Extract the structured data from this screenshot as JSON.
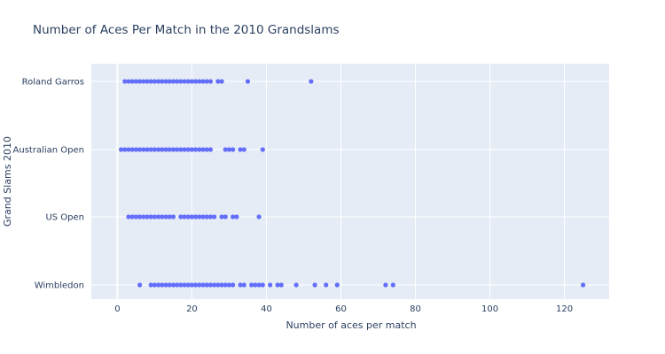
{
  "chart_data": {
    "type": "scatter",
    "title": "Number of Aces Per Match in the 2010 Grandslams",
    "xlabel": "Number of aces per match",
    "ylabel": "Grand Slams 2010",
    "xlim": [
      -7,
      132
    ],
    "xticks": [
      0,
      20,
      40,
      60,
      80,
      100,
      120
    ],
    "xtick_labels": [
      "0",
      "20",
      "40",
      "60",
      "80",
      "100",
      "120"
    ],
    "categories": [
      "Roland Garros",
      "Australian Open",
      "US Open",
      "Wimbledon"
    ],
    "grid": true,
    "marker_color": "#636efa",
    "plot_bgcolor": "#e5ecf6",
    "series": [
      {
        "category": "Roland Garros",
        "values": [
          2,
          3,
          4,
          5,
          6,
          7,
          8,
          9,
          10,
          11,
          12,
          13,
          14,
          15,
          16,
          17,
          18,
          19,
          20,
          21,
          22,
          23,
          24,
          25,
          27,
          28,
          35,
          52
        ]
      },
      {
        "category": "Australian Open",
        "values": [
          1,
          2,
          3,
          4,
          5,
          6,
          7,
          8,
          9,
          10,
          11,
          12,
          13,
          14,
          15,
          16,
          17,
          18,
          19,
          20,
          21,
          22,
          23,
          24,
          25,
          29,
          30,
          31,
          33,
          34,
          39
        ]
      },
      {
        "category": "US Open",
        "values": [
          3,
          4,
          5,
          6,
          7,
          8,
          9,
          10,
          11,
          12,
          13,
          14,
          15,
          17,
          18,
          19,
          20,
          21,
          22,
          23,
          24,
          25,
          26,
          28,
          29,
          31,
          32,
          38
        ]
      },
      {
        "category": "Wimbledon",
        "values": [
          6,
          9,
          10,
          11,
          12,
          13,
          14,
          15,
          16,
          17,
          18,
          19,
          20,
          21,
          22,
          23,
          24,
          25,
          26,
          27,
          28,
          29,
          30,
          31,
          33,
          34,
          36,
          37,
          38,
          39,
          41,
          43,
          44,
          48,
          53,
          56,
          59,
          72,
          74,
          125
        ]
      }
    ]
  }
}
